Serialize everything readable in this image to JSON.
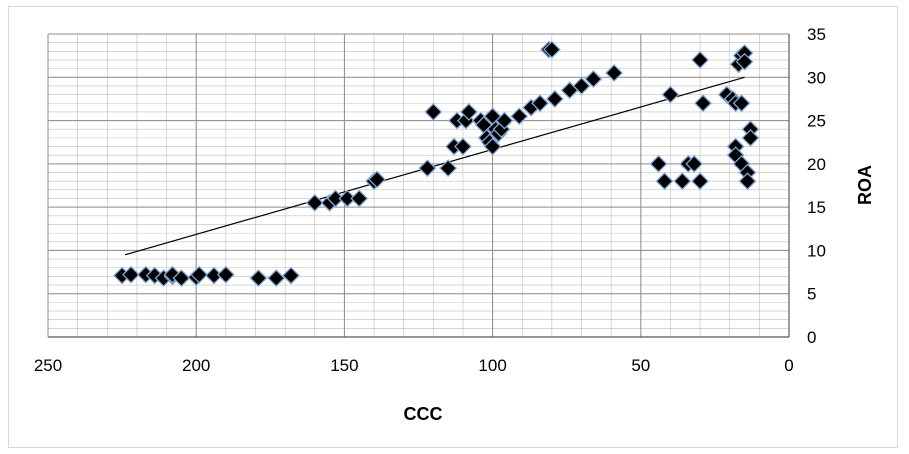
{
  "chart_data": {
    "type": "scatter",
    "title": "",
    "xlabel": "CCC",
    "ylabel": "ROA",
    "x_reversed": true,
    "xlim": [
      0,
      250
    ],
    "ylim": [
      0,
      35
    ],
    "x_ticks": [
      250,
      200,
      150,
      100,
      50,
      0
    ],
    "y_ticks": [
      0,
      5,
      10,
      15,
      20,
      25,
      30,
      35
    ],
    "grid": "major and minor gridlines",
    "legend": "none",
    "marker": "diamond",
    "marker_color": "#000000",
    "marker_edge_color": "#7fa7d6",
    "trendline": {
      "type": "linear",
      "from": [
        224,
        9.5
      ],
      "to": [
        15,
        30
      ]
    },
    "points": [
      [
        225,
        7.1
      ],
      [
        222,
        7.2
      ],
      [
        217,
        7.2
      ],
      [
        214,
        7.1
      ],
      [
        211,
        6.8
      ],
      [
        208,
        7.0
      ],
      [
        208,
        7.2
      ],
      [
        205,
        6.8
      ],
      [
        200,
        6.9
      ],
      [
        199,
        7.2
      ],
      [
        194,
        7.1
      ],
      [
        190,
        7.2
      ],
      [
        179,
        6.8
      ],
      [
        173,
        6.8
      ],
      [
        168,
        7.1
      ],
      [
        160,
        15.5
      ],
      [
        155,
        15.5
      ],
      [
        153,
        16.0
      ],
      [
        149,
        16.0
      ],
      [
        145,
        16.0
      ],
      [
        140,
        18.0
      ],
      [
        139,
        18.2
      ],
      [
        122,
        19.5
      ],
      [
        120,
        26.0
      ],
      [
        115,
        19.5
      ],
      [
        113,
        22.0
      ],
      [
        112,
        25.0
      ],
      [
        110,
        22.0
      ],
      [
        109,
        25.0
      ],
      [
        108,
        26.0
      ],
      [
        104,
        25.0
      ],
      [
        103,
        24.5
      ],
      [
        102,
        23.0
      ],
      [
        101,
        22.5
      ],
      [
        100,
        25.5
      ],
      [
        100,
        22.0
      ],
      [
        99,
        24.0
      ],
      [
        98,
        23.5
      ],
      [
        97,
        24.0
      ],
      [
        96,
        25.0
      ],
      [
        91,
        25.5
      ],
      [
        87,
        26.5
      ],
      [
        84,
        27.0
      ],
      [
        81,
        33.2
      ],
      [
        80,
        33.2
      ],
      [
        79,
        27.5
      ],
      [
        74,
        28.5
      ],
      [
        70,
        29.0
      ],
      [
        66,
        29.8
      ],
      [
        59,
        30.5
      ],
      [
        44,
        20.0
      ],
      [
        42,
        18.0
      ],
      [
        40,
        28.0
      ],
      [
        36,
        18.0
      ],
      [
        34,
        20.0
      ],
      [
        32,
        20.0
      ],
      [
        30,
        18.0
      ],
      [
        30,
        32.0
      ],
      [
        29,
        27.0
      ],
      [
        21,
        28.0
      ],
      [
        19,
        27.5
      ],
      [
        18,
        22.0
      ],
      [
        18,
        21.0
      ],
      [
        18,
        27.0
      ],
      [
        17,
        31.5
      ],
      [
        16,
        20.0
      ],
      [
        16,
        27.0
      ],
      [
        16,
        32.5
      ],
      [
        15,
        32.8
      ],
      [
        15,
        31.8
      ],
      [
        14,
        19.0
      ],
      [
        14,
        18.0
      ],
      [
        13,
        24.0
      ],
      [
        13,
        23.0
      ]
    ]
  }
}
